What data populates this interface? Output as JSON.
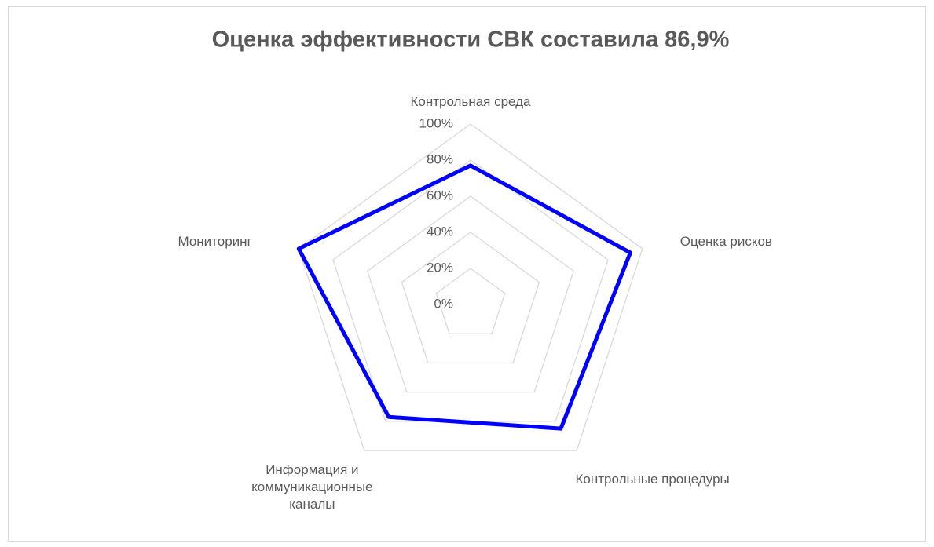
{
  "chart_data": {
    "type": "radar",
    "title": "Оценка эффективности СВК  составила 86,9%",
    "categories": [
      "Контрольная среда",
      "Оценка рисков",
      "Контрольные процедуры",
      "Информация и коммуникационные каналы",
      "Мониторинг"
    ],
    "values": [
      77,
      93,
      85,
      77,
      100
    ],
    "color": "#0000ff",
    "ylim": [
      0,
      100
    ],
    "yticks": [
      {
        "value": 0,
        "label": "0%"
      },
      {
        "value": 20,
        "label": "20%"
      },
      {
        "value": 40,
        "label": "40%"
      },
      {
        "value": 60,
        "label": "60%"
      },
      {
        "value": 80,
        "label": "80%"
      },
      {
        "value": 100,
        "label": "100%"
      }
    ],
    "grid": true
  }
}
